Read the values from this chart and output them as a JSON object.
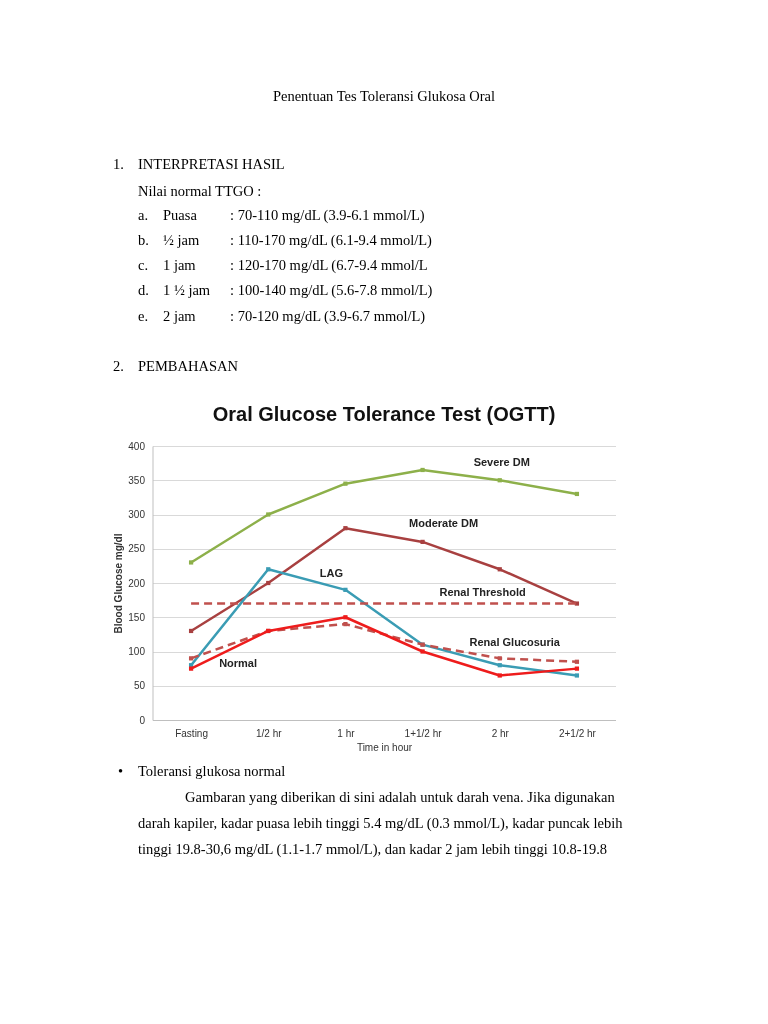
{
  "chart_data": {
    "type": "line",
    "title": "Oral Glucose Tolerance Test (OGTT)",
    "xlabel": "Time in hour",
    "ylabel": "Blood Glucose  mg/dl",
    "categories": [
      "Fasting",
      "1/2 hr",
      "1 hr",
      "1+1/2 hr",
      "2 hr",
      "2+1/2 hr"
    ],
    "series": [
      {
        "name": "Severe DM",
        "color": "#8db04a",
        "values": [
          230,
          300,
          345,
          365,
          350,
          330
        ]
      },
      {
        "name": "Moderate DM",
        "color": "#a84040",
        "values": [
          130,
          200,
          280,
          260,
          220,
          170
        ]
      },
      {
        "name": "LAG",
        "color": "#3a9cb4",
        "values": [
          80,
          220,
          190,
          110,
          80,
          65
        ]
      },
      {
        "name": "Renal Threshold",
        "color": "#c0504d",
        "line_style": "dashed",
        "marker": "none",
        "values": [
          170,
          170,
          170,
          170,
          170,
          170
        ]
      },
      {
        "name": "Renal Glucosuria",
        "color": "#c0504d",
        "line_style": "dashed",
        "values": [
          90,
          130,
          140,
          110,
          90,
          85
        ]
      },
      {
        "name": "Normal",
        "color": "#ee1c1c",
        "values": [
          75,
          130,
          150,
          100,
          65,
          75
        ]
      }
    ],
    "ylim": [
      0,
      400
    ],
    "yticks": [
      0,
      50,
      100,
      150,
      200,
      250,
      300,
      350,
      400
    ],
    "grid": "y",
    "legend": false,
    "marker": "square",
    "line_style": "solid",
    "annotations": [
      "Penentuan Tes Toleransi Glukosa Oral",
      "1.\tINTERPRETASI HASIL",
      "\tNilai normal TTGO    :",
      "\ta.\tPuasa\t: 70-110 mg/dL (3.9-6.1 mmol/L)",
      "\tb.\t½ jam\t: 110-170 mg/dL (6.1-9.4 mmol/L)",
      "\tc.\t1 jam\t: 120-170 mg/dL (6.7-9.4 mmol/L",
      "\td.\t1 ½ jam\t: 100-140 mg/dL (5.6-7.8 mmol/L)",
      "\te.\t2 jam\t: 70-120 mg/dL (3.9-6.7 mmol/L)",
      "2.\tPEMBAHASAN",
      "•\tToleransi glukosa normal",
      "Gambaran yang diberikan di sini adalah untuk darah vena. Jika digunakan",
      "darah kapiler, kadar puasa lebih tinggi 5.4 mg/dL (0.3 mmol/L), kadar puncak lebih",
      "tinggi 19.8-30,6 mg/dL (1.1-1.7 mmol/L), dan kadar 2 jam lebih tinggi 10.8-19.8"
    ]
  }
}
